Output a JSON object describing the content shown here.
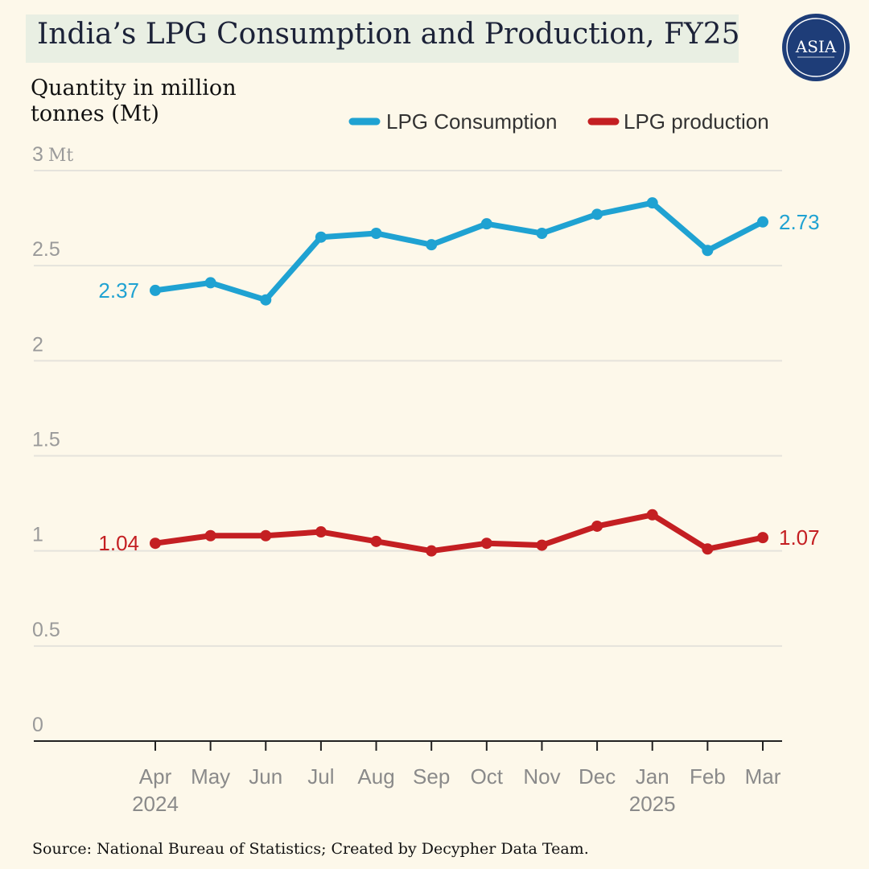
{
  "header": {
    "title": "India’s LPG Consumption and Production, FY25",
    "logo_text": "ASIA"
  },
  "unit_label": {
    "line1": "Quantity in million",
    "line2": "tonnes (Mt)"
  },
  "source": "Source: National Bureau of Statistics; Created by Decypher Data Team.",
  "colors": {
    "consumption": "#1fa2d2",
    "production": "#c41f22",
    "grid": "#e5e3dc",
    "axis": "#222222",
    "logo": "#1e3d78"
  },
  "chart_data": {
    "type": "line",
    "categories": [
      "Apr",
      "May",
      "Jun",
      "Jul",
      "Aug",
      "Sep",
      "Oct",
      "Nov",
      "Dec",
      "Jan",
      "Feb",
      "Mar"
    ],
    "year_labels": [
      {
        "category": "Apr",
        "label": "2024"
      },
      {
        "category": "Jan",
        "label": "2025"
      }
    ],
    "y_ticks": [
      {
        "value": 0,
        "label": "0"
      },
      {
        "value": 0.5,
        "label": "0.5"
      },
      {
        "value": 1,
        "label": "1"
      },
      {
        "value": 1.5,
        "label": "1.5"
      },
      {
        "value": 2,
        "label": "2"
      },
      {
        "value": 2.5,
        "label": "2.5"
      },
      {
        "value": 3,
        "label": "3",
        "unit": "Mt"
      }
    ],
    "ylim": [
      0,
      3
    ],
    "grid": true,
    "legend_position": "top-right",
    "series": [
      {
        "name": "LPG Consumption",
        "color_key": "consumption",
        "values": [
          2.37,
          2.41,
          2.32,
          2.65,
          2.67,
          2.61,
          2.72,
          2.67,
          2.77,
          2.83,
          2.58,
          2.73
        ],
        "start_label": "2.37",
        "end_label": "2.73"
      },
      {
        "name": "LPG production",
        "color_key": "production",
        "values": [
          1.04,
          1.08,
          1.08,
          1.1,
          1.05,
          1.0,
          1.04,
          1.03,
          1.13,
          1.19,
          1.01,
          1.07
        ],
        "start_label": "1.04",
        "end_label": "1.07"
      }
    ]
  }
}
